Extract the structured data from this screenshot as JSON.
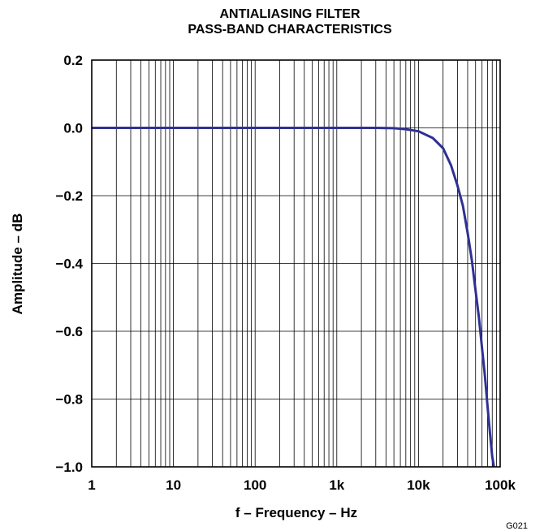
{
  "figure_code": "G021",
  "chart_data": {
    "type": "line",
    "title_lines": [
      "ANTIALIASING FILTER",
      "PASS-BAND CHARACTERISTICS"
    ],
    "xlabel": "f – Frequency – Hz",
    "ylabel": "Amplitude – dB",
    "xscale": "log",
    "xlim": [
      1,
      100000
    ],
    "ylim": [
      -1.0,
      0.2
    ],
    "x_tick_values": [
      1,
      10,
      100,
      1000,
      10000,
      100000
    ],
    "x_tick_labels": [
      "1",
      "10",
      "100",
      "1k",
      "10k",
      "100k"
    ],
    "y_tick_values": [
      0.2,
      0.0,
      -0.2,
      -0.4,
      -0.6,
      -0.8,
      -1.0
    ],
    "y_tick_labels": [
      "0.2",
      "0.0",
      "−0.2",
      "−0.4",
      "−0.6",
      "−0.8",
      "−1.0"
    ],
    "grid": true,
    "series_color": "#2e3192",
    "series": [
      {
        "x": [
          1,
          10,
          100,
          1000,
          3000,
          5000,
          7000,
          10000,
          15000,
          20000,
          25000,
          30000,
          35000,
          40000,
          45000,
          50000,
          55000,
          60000,
          65000,
          70000,
          75000,
          80000,
          84000
        ],
        "y": [
          0.0,
          0.0,
          0.0,
          0.0,
          0.0,
          -0.001,
          -0.004,
          -0.01,
          -0.03,
          -0.06,
          -0.11,
          -0.17,
          -0.23,
          -0.31,
          -0.39,
          -0.48,
          -0.56,
          -0.65,
          -0.73,
          -0.82,
          -0.9,
          -0.97,
          -1.0
        ]
      }
    ]
  }
}
